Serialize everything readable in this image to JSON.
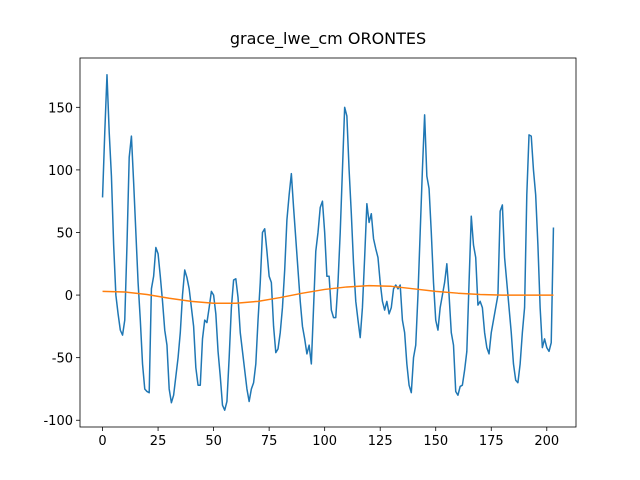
{
  "chart_data": {
    "type": "line",
    "title": "grace_lwe_cm ORONTES",
    "xlim": [
      -10.15,
      213.15
    ],
    "xticks": [
      0,
      25,
      50,
      75,
      100,
      125,
      150,
      175,
      200
    ],
    "ylim": [
      -105.4,
      189.4
    ],
    "yticks": [
      -100,
      -50,
      0,
      50,
      100,
      150
    ],
    "series": [
      {
        "color": "#1f77b4",
        "x": [
          0,
          1,
          2,
          3,
          4,
          5,
          6,
          7,
          8,
          9,
          10,
          11,
          12,
          13,
          14,
          15,
          16,
          17,
          18,
          19,
          20,
          21,
          22,
          23,
          24,
          25,
          26,
          27,
          28,
          29,
          30,
          31,
          32,
          33,
          34,
          35,
          36,
          37,
          38,
          39,
          40,
          41,
          42,
          43,
          44,
          45,
          46,
          47,
          48,
          49,
          50,
          51,
          52,
          53,
          54,
          55,
          56,
          57,
          58,
          59,
          60,
          61,
          62,
          63,
          64,
          65,
          66,
          67,
          68,
          69,
          70,
          71,
          72,
          73,
          74,
          75,
          76,
          77,
          78,
          79,
          80,
          81,
          82,
          83,
          84,
          85,
          86,
          87,
          88,
          89,
          90,
          91,
          92,
          93,
          94,
          95,
          96,
          97,
          98,
          99,
          100,
          101,
          102,
          103,
          104,
          105,
          106,
          107,
          108,
          109,
          110,
          111,
          112,
          113,
          114,
          115,
          116,
          117,
          118,
          119,
          120,
          121,
          122,
          123,
          124,
          125,
          126,
          127,
          128,
          129,
          130,
          131,
          132,
          133,
          134,
          135,
          136,
          137,
          138,
          139,
          140,
          141,
          142,
          143,
          144,
          145,
          146,
          147,
          148,
          149,
          150,
          151,
          152,
          153,
          154,
          155,
          156,
          157,
          158,
          159,
          160,
          161,
          162,
          163,
          164,
          165,
          166,
          167,
          168,
          169,
          170,
          171,
          172,
          173,
          174,
          175,
          176,
          177,
          178,
          179,
          180,
          181,
          182,
          183,
          184,
          185,
          186,
          187,
          188,
          189,
          190,
          191,
          192,
          193,
          194,
          195,
          196,
          197,
          198,
          199,
          200,
          201,
          202,
          203
        ],
        "values": [
          78,
          130,
          176,
          130,
          95,
          40,
          0,
          -15,
          -28,
          -32,
          -20,
          40,
          110,
          127,
          90,
          50,
          10,
          -20,
          -55,
          -75,
          -77,
          -78,
          5,
          15,
          38,
          33,
          15,
          -5,
          -28,
          -40,
          -75,
          -86,
          -80,
          -65,
          -50,
          -30,
          0,
          20,
          14,
          5,
          -10,
          -25,
          -58,
          -72,
          -72,
          -35,
          -20,
          -22,
          -10,
          3,
          0,
          -15,
          -45,
          -65,
          -88,
          -92,
          -85,
          -50,
          -10,
          12,
          13,
          -2,
          -30,
          -45,
          -60,
          -75,
          -85,
          -75,
          -70,
          -55,
          -20,
          10,
          50,
          53,
          35,
          15,
          10,
          -25,
          -46,
          -43,
          -30,
          -10,
          20,
          60,
          80,
          97,
          70,
          45,
          20,
          -5,
          -25,
          -35,
          -47,
          -40,
          -55,
          -10,
          35,
          50,
          70,
          75,
          50,
          15,
          15,
          -12,
          -18,
          -18,
          10,
          50,
          100,
          150,
          143,
          100,
          65,
          25,
          -5,
          -20,
          -34,
          -10,
          30,
          73,
          58,
          65,
          45,
          37,
          30,
          10,
          -5,
          -12,
          -5,
          -15,
          -10,
          5,
          8,
          5,
          8,
          -20,
          -30,
          -55,
          -72,
          -78,
          -50,
          -40,
          0,
          50,
          100,
          144,
          95,
          85,
          50,
          10,
          -20,
          -28,
          -10,
          0,
          10,
          25,
          0,
          -30,
          -40,
          -77,
          -80,
          -73,
          -72,
          -60,
          -45,
          10,
          63,
          40,
          30,
          -8,
          -5,
          -10,
          -30,
          -42,
          -47,
          -30,
          -20,
          -10,
          0,
          67,
          72,
          30,
          10,
          -10,
          -30,
          -55,
          -68,
          -70,
          -55,
          -30,
          -10,
          80,
          128,
          127,
          100,
          80,
          40,
          -10,
          -42,
          -35,
          -42,
          -45,
          -38,
          54
        ]
      },
      {
        "color": "#ff7f0e",
        "x": [
          0,
          10,
          20,
          30,
          40,
          50,
          60,
          70,
          80,
          90,
          100,
          110,
          120,
          130,
          140,
          150,
          160,
          170,
          180,
          190,
          200,
          203
        ],
        "values": [
          3,
          2.5,
          0.5,
          -2.5,
          -5,
          -6.5,
          -6.5,
          -5,
          -2,
          1.5,
          4.5,
          6.5,
          7.5,
          7,
          5,
          3,
          1.5,
          0.5,
          0,
          0,
          0,
          0
        ]
      }
    ]
  }
}
